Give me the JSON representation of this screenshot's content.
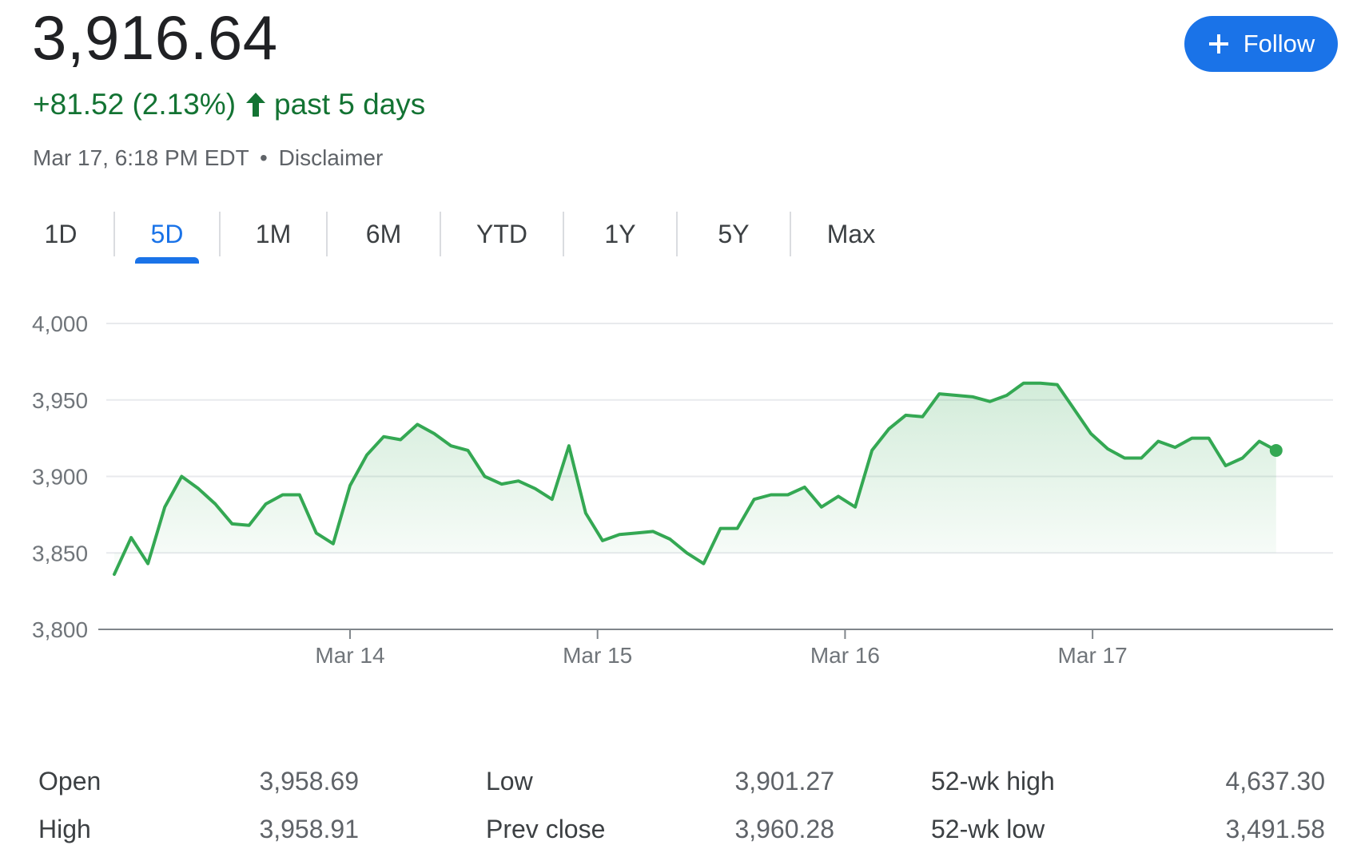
{
  "quote": {
    "price": "3,916.64",
    "change": "+81.52 (2.13%)",
    "period": "past 5 days",
    "timestamp": "Mar 17, 6:18 PM EDT",
    "separator": "•",
    "disclaimer": "Disclaimer"
  },
  "follow_button": {
    "label": "Follow",
    "icon": "plus-icon",
    "color": "#1a73e8"
  },
  "tabs": [
    {
      "label": "1D",
      "active": false
    },
    {
      "label": "5D",
      "active": true
    },
    {
      "label": "1M",
      "active": false
    },
    {
      "label": "6M",
      "active": false
    },
    {
      "label": "YTD",
      "active": false
    },
    {
      "label": "1Y",
      "active": false
    },
    {
      "label": "5Y",
      "active": false
    },
    {
      "label": "Max",
      "active": false
    }
  ],
  "colors": {
    "positive": "#137333",
    "line": "#34a853",
    "accent": "#1a73e8"
  },
  "chart_data": {
    "type": "area",
    "title": "",
    "xlabel": "",
    "ylabel": "",
    "ylim": [
      3800,
      4000
    ],
    "y_ticks": [
      4000,
      3950,
      3900,
      3850,
      3800
    ],
    "y_tick_labels": [
      "4,000",
      "3,950",
      "3,900",
      "3,850",
      "3,800"
    ],
    "x_range": [
      0,
      72
    ],
    "x_ticks": [
      {
        "x": 14,
        "label": "Mar 14"
      },
      {
        "x": 28.7,
        "label": "Mar 15"
      },
      {
        "x": 43.4,
        "label": "Mar 16"
      },
      {
        "x": 58.1,
        "label": "Mar 17"
      }
    ],
    "grid": true,
    "legend": "none",
    "series": [
      {
        "values": [
          3836,
          3860,
          3843,
          3880,
          3900,
          3892,
          3882,
          3869,
          3868,
          3882,
          3888,
          3888,
          3863,
          3856,
          3894,
          3914,
          3926,
          3924,
          3934,
          3928,
          3920,
          3917,
          3900,
          3895,
          3897,
          3892,
          3885,
          3920,
          3876,
          3858,
          3862,
          3863,
          3864,
          3859,
          3850,
          3843,
          3866,
          3866,
          3885,
          3888,
          3888,
          3893,
          3880,
          3887,
          3880,
          3917,
          3931,
          3940,
          3939,
          3954,
          3953,
          3952,
          3949,
          3953,
          3961,
          3961,
          3960,
          3944,
          3928,
          3918,
          3912,
          3912,
          3923,
          3919,
          3925,
          3925,
          3907,
          3912,
          3923,
          3917
        ],
        "end_marker": true
      }
    ]
  },
  "stats": {
    "rows": [
      [
        {
          "label": "Open",
          "value": "3,958.69"
        },
        {
          "label": "Low",
          "value": "3,901.27"
        },
        {
          "label": "52-wk high",
          "value": "4,637.30"
        }
      ],
      [
        {
          "label": "High",
          "value": "3,958.91"
        },
        {
          "label": "Prev close",
          "value": "3,960.28"
        },
        {
          "label": "52-wk low",
          "value": "3,491.58"
        }
      ]
    ]
  }
}
